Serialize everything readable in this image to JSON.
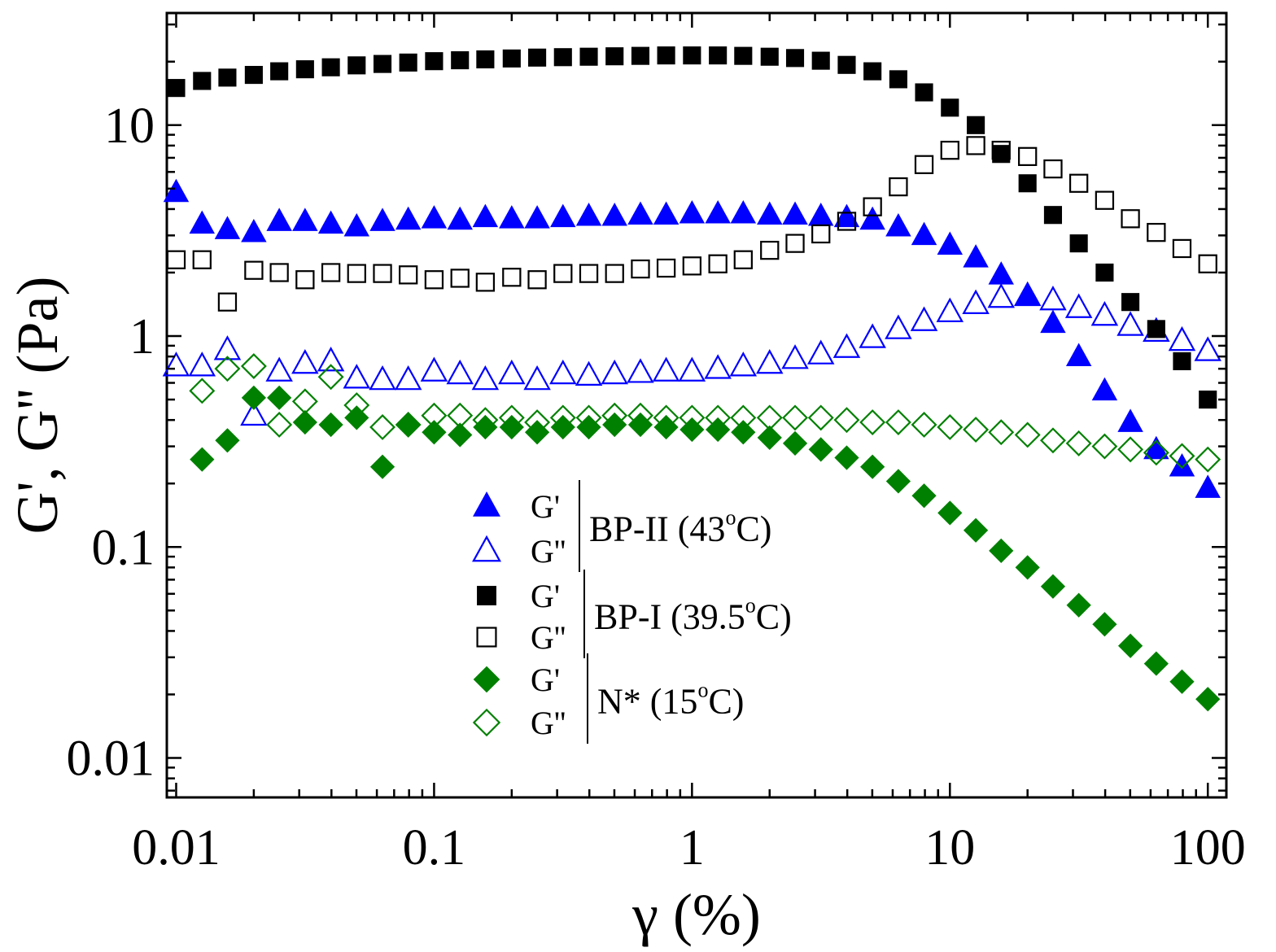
{
  "chart_data": {
    "type": "scatter",
    "title": "",
    "xlabel": "γ (%)",
    "ylabel": "G', G'' (Pa)",
    "xscale": "log",
    "yscale": "log",
    "xlim": [
      0.0092,
      118
    ],
    "ylim": [
      0.0065,
      34
    ],
    "x_ticks": [
      {
        "value": 0.01,
        "label": "0.01"
      },
      {
        "value": 0.1,
        "label": "0.1"
      },
      {
        "value": 1,
        "label": "1"
      },
      {
        "value": 10,
        "label": "10"
      },
      {
        "value": 100,
        "label": "100"
      }
    ],
    "y_ticks": [
      {
        "value": 0.01,
        "label": "0.01"
      },
      {
        "value": 0.1,
        "label": "0.1"
      },
      {
        "value": 1,
        "label": "1"
      },
      {
        "value": 10,
        "label": "10"
      }
    ],
    "x": [
      0.01,
      0.0126,
      0.0158,
      0.02,
      0.0251,
      0.0316,
      0.0398,
      0.0501,
      0.0631,
      0.0794,
      0.1,
      0.126,
      0.158,
      0.2,
      0.251,
      0.316,
      0.398,
      0.501,
      0.631,
      0.794,
      1,
      1.26,
      1.58,
      2,
      2.51,
      3.16,
      3.98,
      5.01,
      6.31,
      7.94,
      10,
      12.6,
      15.8,
      20,
      25.1,
      31.6,
      39.8,
      50.1,
      63.1,
      79.4,
      100
    ],
    "series": [
      {
        "name": "BP-II G'",
        "marker": "triangle",
        "filled": true,
        "color": "#0000ff",
        "values": [
          4.8,
          3.4,
          3.2,
          3.1,
          3.5,
          3.5,
          3.4,
          3.3,
          3.5,
          3.55,
          3.6,
          3.55,
          3.65,
          3.6,
          3.6,
          3.65,
          3.7,
          3.7,
          3.75,
          3.75,
          3.8,
          3.8,
          3.8,
          3.75,
          3.75,
          3.7,
          3.65,
          3.55,
          3.3,
          3.0,
          2.7,
          2.35,
          1.95,
          1.55,
          1.15,
          0.8,
          0.55,
          0.39,
          0.29,
          0.24,
          0.19
        ]
      },
      {
        "name": "BP-II G''",
        "marker": "triangle",
        "filled": false,
        "color": "#0000ff",
        "values": [
          0.72,
          0.72,
          0.86,
          0.42,
          0.68,
          0.74,
          0.76,
          0.63,
          0.62,
          0.62,
          0.68,
          0.66,
          0.62,
          0.66,
          0.62,
          0.66,
          0.65,
          0.66,
          0.67,
          0.68,
          0.68,
          0.7,
          0.72,
          0.74,
          0.78,
          0.82,
          0.88,
          0.98,
          1.08,
          1.18,
          1.3,
          1.42,
          1.52,
          1.55,
          1.48,
          1.36,
          1.25,
          1.12,
          1.05,
          0.95,
          0.85
        ]
      },
      {
        "name": "BP-I G'",
        "marker": "square",
        "filled": true,
        "color": "#000000",
        "values": [
          15.0,
          16.2,
          16.8,
          17.3,
          18.0,
          18.4,
          18.8,
          19.2,
          19.5,
          19.8,
          20.1,
          20.3,
          20.5,
          20.7,
          20.9,
          21.0,
          21.1,
          21.2,
          21.3,
          21.4,
          21.4,
          21.4,
          21.3,
          21.1,
          20.8,
          20.2,
          19.3,
          18.0,
          16.5,
          14.3,
          12.1,
          10.0,
          7.3,
          5.3,
          3.75,
          2.75,
          2.0,
          1.45,
          1.08,
          0.76,
          0.5
        ]
      },
      {
        "name": "BP-I G''",
        "marker": "square",
        "filled": false,
        "color": "#000000",
        "values": [
          2.3,
          2.3,
          1.45,
          2.05,
          2.0,
          1.85,
          2.0,
          1.98,
          1.98,
          1.95,
          1.85,
          1.88,
          1.8,
          1.9,
          1.85,
          1.98,
          1.98,
          1.98,
          2.08,
          2.1,
          2.15,
          2.2,
          2.3,
          2.55,
          2.75,
          3.05,
          3.5,
          4.1,
          5.1,
          6.5,
          7.6,
          8.0,
          7.6,
          7.1,
          6.2,
          5.3,
          4.4,
          3.6,
          3.1,
          2.6,
          2.2
        ]
      },
      {
        "name": "N* G'",
        "marker": "diamond",
        "filled": true,
        "color": "#008000",
        "values": [
          null,
          0.26,
          0.32,
          0.51,
          0.51,
          0.39,
          0.38,
          0.41,
          0.24,
          0.38,
          0.35,
          0.34,
          0.37,
          0.37,
          0.35,
          0.37,
          0.37,
          0.38,
          0.38,
          0.37,
          0.36,
          0.36,
          0.35,
          0.33,
          0.31,
          0.29,
          0.265,
          0.24,
          0.205,
          0.175,
          0.145,
          0.12,
          0.096,
          0.08,
          0.065,
          0.053,
          0.043,
          0.034,
          0.028,
          0.023,
          0.019
        ]
      },
      {
        "name": "N* G''",
        "marker": "diamond",
        "filled": false,
        "color": "#008000",
        "values": [
          null,
          0.55,
          0.7,
          0.72,
          0.38,
          0.49,
          0.64,
          0.47,
          0.37,
          0.38,
          0.42,
          0.42,
          0.4,
          0.41,
          0.39,
          0.41,
          0.41,
          0.42,
          0.42,
          0.41,
          0.41,
          0.41,
          0.41,
          0.41,
          0.41,
          0.41,
          0.4,
          0.39,
          0.39,
          0.38,
          0.37,
          0.36,
          0.35,
          0.34,
          0.32,
          0.31,
          0.3,
          0.29,
          0.28,
          0.27,
          0.26
        ]
      }
    ],
    "legend": {
      "placement": "center",
      "groups": [
        {
          "phase": "BP-II (43",
          "sup": "o",
          "unit": "C)",
          "entries": [
            {
              "label": "G'",
              "marker": "triangle",
              "filled": true,
              "color": "#0000ff"
            },
            {
              "label": "G''",
              "marker": "triangle",
              "filled": false,
              "color": "#0000ff"
            }
          ]
        },
        {
          "phase": "BP-I (39.5",
          "sup": "o",
          "unit": "C)",
          "entries": [
            {
              "label": "G'",
              "marker": "square",
              "filled": true,
              "color": "#000000"
            },
            {
              "label": "G''",
              "marker": "square",
              "filled": false,
              "color": "#000000"
            }
          ]
        },
        {
          "phase": "N* (15",
          "sup": "o",
          "unit": "C)",
          "entries": [
            {
              "label": "G'",
              "marker": "diamond",
              "filled": true,
              "color": "#008000"
            },
            {
              "label": "G''",
              "marker": "diamond",
              "filled": false,
              "color": "#008000"
            }
          ]
        }
      ]
    }
  }
}
